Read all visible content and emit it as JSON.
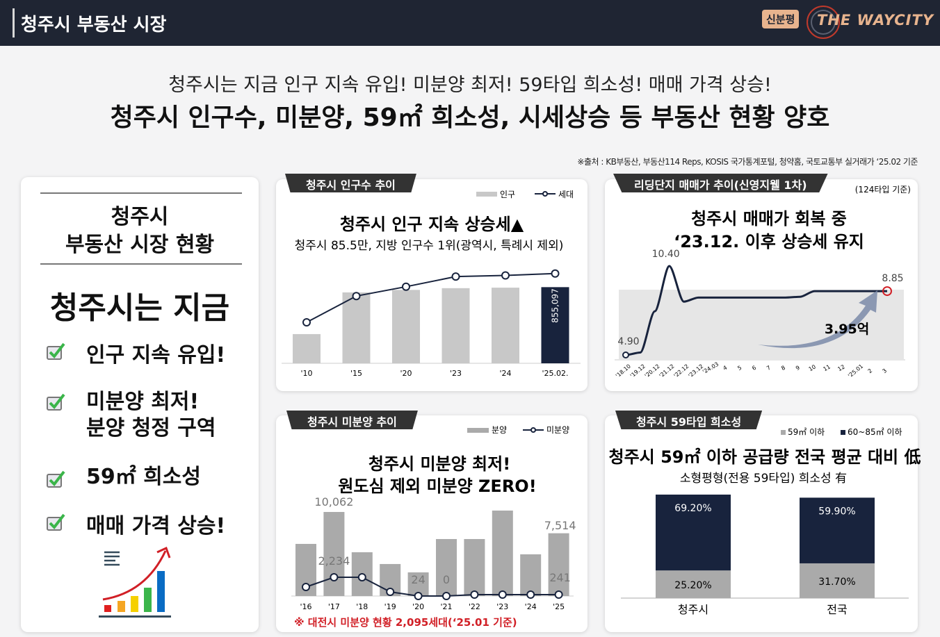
{
  "header": {
    "title": "청주시 부동산 시장",
    "badge": "신분평",
    "logo": "THE WAYCITY"
  },
  "headline": {
    "line1": "청주시는 지금 인구 지속 유입! 미분양 최저! 59타입 희소성! 매매 가격 상승!",
    "line2": "청주시 인구수, 미분양, 59㎡ 희소성, 시세상승 등 부동산 현황 양호"
  },
  "source": "※출처 : KB부동산, 부동산114 Reps, KOSIS 국가통계포털, 청약홈, 국토교통부 실거래가 ‘25.02 기준",
  "left": {
    "title1": "청주시",
    "title2": "부동산 시장 현황",
    "now": "청주시는 지금",
    "items": [
      {
        "l1": "인구 지속 유입!"
      },
      {
        "l1": "미분양 최저!",
        "l2": "분양 청정 구역"
      },
      {
        "l1": "59㎡ 희소성"
      },
      {
        "l1": "매매 가격 상승!"
      }
    ],
    "icons": [
      "checkbox-icon",
      "growth-chart-icon"
    ]
  },
  "colors": {
    "navy": "#18233d",
    "gray": "#c8c8c8",
    "dark_gray": "#aaaaaa",
    "red": "#d11f26"
  },
  "chart_data": [
    {
      "type": "bar",
      "tab": "청주시 인구수 추이",
      "title": "청주시 인구 지속 상승세▲",
      "subtitle": "청주시 85.5만, 지방 인구수 1위(광역시, 특례시 제외)",
      "legend": [
        "인구",
        "세대"
      ],
      "categories": [
        "'10",
        "'15",
        "'20",
        "'23",
        "'24",
        "'25.02."
      ],
      "series": [
        {
          "name": "인구",
          "type": "bar",
          "values": [
            667000,
            834000,
            844000,
            851000,
            853000,
            855097
          ]
        },
        {
          "name": "세대",
          "type": "line",
          "values": [
            250000,
            320000,
            345000,
            372000,
            375000,
            380000
          ]
        }
      ],
      "labels": {
        "last": "855,097"
      },
      "ylim": [
        550000,
        870000
      ]
    },
    {
      "type": "line",
      "tab": "리딩단지 매매가 추이(신영지웰 1차)",
      "note": "(124타입 기준)",
      "title": "청주시 매매가 회복 중",
      "subtitle": "‘23.12. 이후 상승세 유지",
      "categories": [
        "'18.10",
        "'19.12",
        "'20.12",
        "'21.12",
        "'22.12",
        "'23.12",
        "'24.03",
        "4",
        "5",
        "6",
        "7",
        "8",
        "9",
        "10",
        "11",
        "12",
        "'25.01",
        "2",
        "3"
      ],
      "values": [
        4.9,
        5.05,
        7.6,
        10.4,
        8.2,
        8.45,
        8.45,
        8.45,
        8.45,
        8.45,
        8.45,
        8.45,
        8.5,
        8.85,
        8.85,
        8.85,
        8.85,
        8.85,
        8.85
      ],
      "labels": {
        "start": "4.90",
        "peak": "10.40",
        "end": "8.85",
        "gain": "3.95억"
      },
      "ylim": [
        4.5,
        11
      ]
    },
    {
      "type": "bar",
      "tab": "청주시 미분양 추이",
      "title": "청주시 미분양 최저!",
      "subtitle": "원도심 제외 미분양 ZERO!",
      "legend": [
        "분양",
        "미분양"
      ],
      "categories": [
        "'16",
        "'17",
        "'18",
        "'19",
        "'20",
        "'21",
        "'22",
        "'23",
        "'24",
        "'25"
      ],
      "series": [
        {
          "name": "분양",
          "type": "bar",
          "values": [
            6240,
            10062,
            5240,
            3830,
            2830,
            6820,
            6820,
            10230,
            4990,
            7514
          ]
        },
        {
          "name": "미분양",
          "type": "line",
          "values": [
            1250,
            2234,
            2234,
            500,
            24,
            0,
            180,
            200,
            200,
            241
          ]
        }
      ],
      "labels": {
        "b17": "10,062",
        "b25": "7,514",
        "l17": "2,234",
        "l20": "24",
        "l21": "0",
        "l25": "241"
      },
      "footnote": "※ 대전시 미분양 현황 2,095세대(‘25.01 기준)",
      "ylim": [
        0,
        12000
      ]
    },
    {
      "type": "bar",
      "stacked": true,
      "tab": "청주시 59타입 희소성",
      "title": "청주시 59㎡ 이하 공급량 전국 평균 대비 低",
      "subtitle": "소형평형(전용 59타입) 희소성 有",
      "legend": [
        "59㎡ 이하",
        "60~85㎡ 이하"
      ],
      "categories": [
        "청주시",
        "전국"
      ],
      "series": [
        {
          "name": "59㎡ 이하",
          "values": [
            25.2,
            31.7
          ],
          "labels": [
            "25.20%",
            "31.70%"
          ]
        },
        {
          "name": "60~85㎡ 이하",
          "values": [
            69.2,
            59.9
          ],
          "labels": [
            "69.20%",
            "59.90%"
          ]
        }
      ]
    }
  ]
}
